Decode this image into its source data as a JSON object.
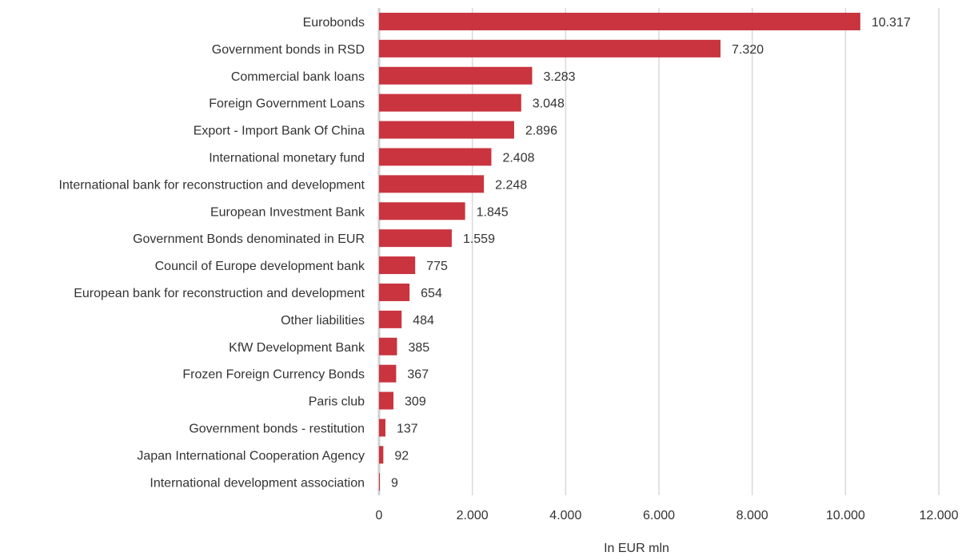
{
  "chart_data": {
    "type": "bar",
    "orientation": "horizontal",
    "categories": [
      "Eurobonds",
      "Government bonds in RSD",
      "Commercial bank loans",
      "Foreign Government Loans",
      "Export - Import Bank Of China",
      "International monetary fund",
      "International bank for reconstruction and development",
      "European Investment Bank",
      "Government Bonds denominated in EUR",
      "Council of Europe development bank",
      "European bank for reconstruction and development",
      "Other liabilities",
      "KfW Development Bank",
      "Frozen Foreign Currency Bonds",
      "Paris club",
      "Government bonds - restitution",
      "Japan International Cooperation Agency",
      "International development association"
    ],
    "values": [
      10317,
      7320,
      3283,
      3048,
      2896,
      2408,
      2248,
      1845,
      1559,
      775,
      654,
      484,
      385,
      367,
      309,
      137,
      92,
      9
    ],
    "value_labels": [
      "10.317",
      "7.320",
      "3.283",
      "3.048",
      "2.896",
      "2.408",
      "2.248",
      "1.845",
      "1.559",
      "775",
      "654",
      "484",
      "385",
      "367",
      "309",
      "137",
      "92",
      "9"
    ],
    "xlim": [
      0,
      12000
    ],
    "x_ticks": [
      0,
      2000,
      4000,
      6000,
      8000,
      10000,
      12000
    ],
    "x_tick_labels": [
      "0",
      "2.000",
      "4.000",
      "6.000",
      "8.000",
      "10.000",
      "12.000"
    ],
    "xlabel": "In EUR mln",
    "ylabel": "",
    "title": "",
    "grid": "vertical",
    "legend": "none",
    "bar_color": "#c9343f",
    "grid_color": "#d9d9d9",
    "text_color": "#333333"
  }
}
